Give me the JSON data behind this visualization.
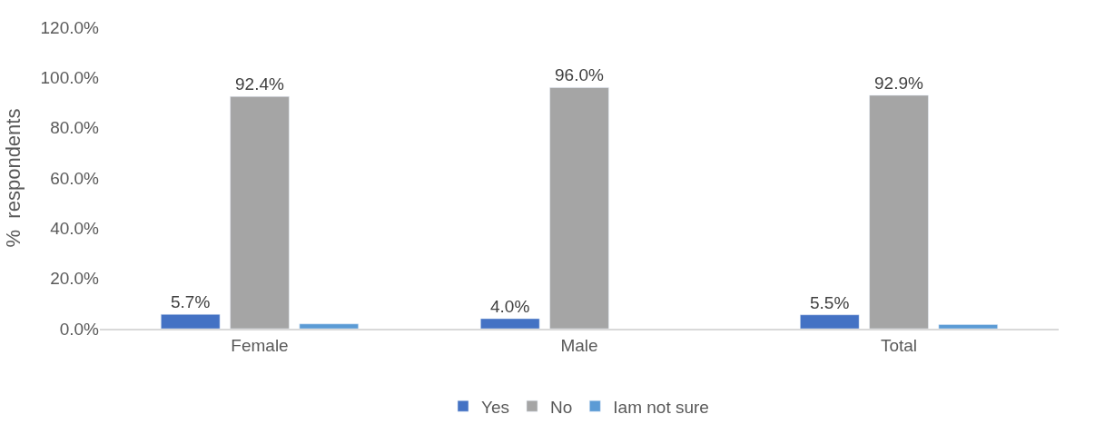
{
  "chart_data": {
    "type": "bar",
    "ylabel": "%  respondents",
    "categories": [
      "Female",
      "Male",
      "Total"
    ],
    "series": [
      {
        "name": "Yes",
        "color": "#4472c4",
        "values": [
          5.7,
          4.0,
          5.5
        ],
        "value_labels": [
          "5.7%",
          "4.0%",
          "5.5%"
        ]
      },
      {
        "name": "No",
        "color": "#a5a5a5",
        "values": [
          92.4,
          96.0,
          92.9
        ],
        "value_labels": [
          "92.4%",
          "96.0%",
          "92.9%"
        ]
      },
      {
        "name": "Iam not sure",
        "color": "#5b9bd5",
        "values": [
          1.9,
          null,
          1.6
        ],
        "value_labels": [
          null,
          null,
          null
        ]
      }
    ],
    "ylim": [
      0,
      120
    ],
    "yticks": [
      {
        "value": 0,
        "label": "0.0%"
      },
      {
        "value": 20,
        "label": "20.0%"
      },
      {
        "value": 40,
        "label": "40.0%"
      },
      {
        "value": 60,
        "label": "60.0%"
      },
      {
        "value": 80,
        "label": "80.0%"
      },
      {
        "value": 100,
        "label": "100.0%"
      },
      {
        "value": 120,
        "label": "120.0%"
      }
    ],
    "grid": false,
    "legend": "bottom"
  }
}
